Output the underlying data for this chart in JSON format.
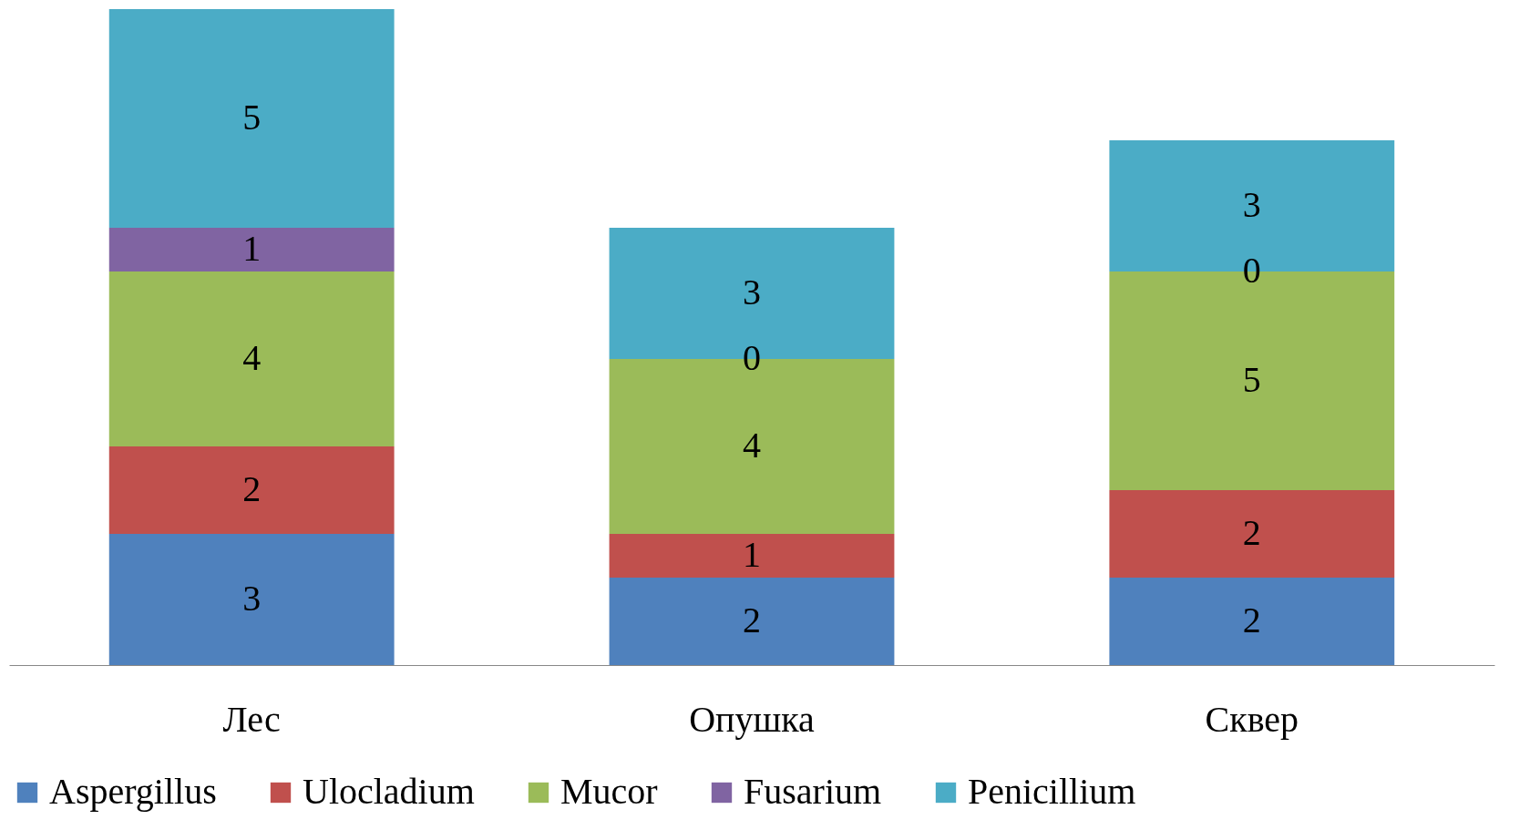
{
  "chart_data": {
    "type": "bar",
    "stacked": true,
    "data_labels": true,
    "legend": "bottom",
    "categories": [
      "Лес",
      "Опушка",
      "Сквер"
    ],
    "series": [
      {
        "name": "Aspergillus",
        "color": "#4f81bd",
        "values": [
          3,
          2,
          2
        ]
      },
      {
        "name": "Ulocladium",
        "color": "#c0504d",
        "values": [
          2,
          1,
          2
        ]
      },
      {
        "name": "Mucor",
        "color": "#9bbb59",
        "values": [
          4,
          4,
          5
        ]
      },
      {
        "name": "Fusarium",
        "color": "#8064a2",
        "values": [
          1,
          0,
          0
        ]
      },
      {
        "name": "Penicillium",
        "color": "#4bacc6",
        "values": [
          5,
          3,
          3
        ]
      }
    ]
  }
}
